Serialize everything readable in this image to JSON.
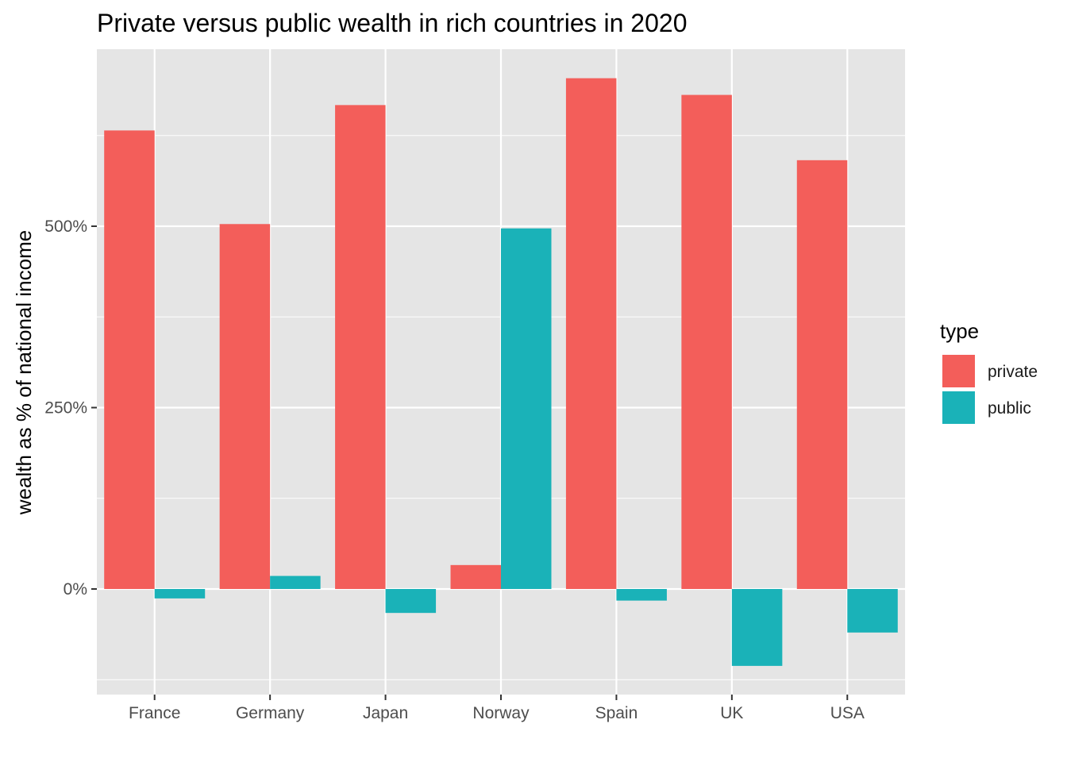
{
  "chart_data": {
    "type": "bar",
    "title": "Private versus public wealth in rich countries in 2020",
    "xlabel": "",
    "ylabel": "wealth as % of national income",
    "categories": [
      "France",
      "Germany",
      "Japan",
      "Norway",
      "Spain",
      "UK",
      "USA"
    ],
    "series": [
      {
        "name": "private",
        "values": [
          632,
          503,
          667,
          33,
          704,
          681,
          591
        ]
      },
      {
        "name": "public",
        "values": [
          -13,
          18,
          -33,
          497,
          -16,
          -106,
          -60
        ]
      }
    ],
    "ylim": [
      -145,
      745
    ],
    "yticks": [
      0,
      250,
      500
    ],
    "ytick_labels": [
      "0%",
      "250%",
      "500%"
    ],
    "grid": true,
    "legend": {
      "title": "type",
      "position": "right",
      "entries": [
        "private",
        "public"
      ]
    },
    "colors": {
      "private": "#F35E5A",
      "public": "#1AB2B8",
      "panel_background": "#E5E5E5",
      "grid_line": "#FFFFFF"
    }
  }
}
